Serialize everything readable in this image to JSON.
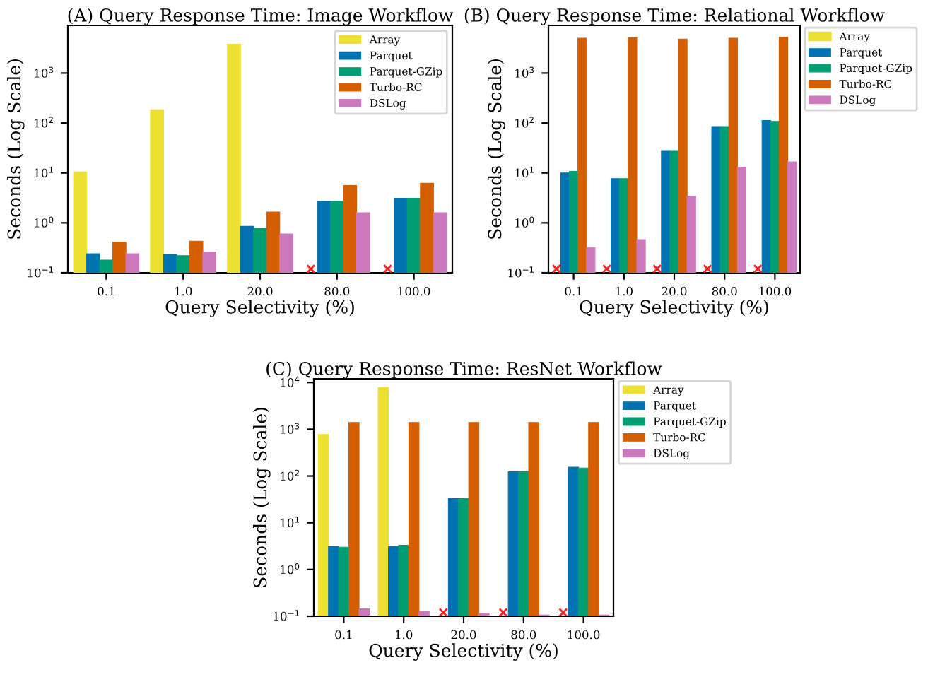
{
  "chart_data": [
    {
      "type": "bar",
      "title": "(A) Query Response Time: Image Workflow",
      "xlabel": "Query Selectivity (%)",
      "ylabel": "Seconds (Log Scale)",
      "categories": [
        "0.1",
        "1.0",
        "20.0",
        "80.0",
        "100.0"
      ],
      "log": true,
      "ylim": [
        0.1,
        9000
      ],
      "yticks": [
        {
          "value": 0.1,
          "label": "10$^{−1}$"
        },
        {
          "value": 1,
          "label": "10$^{0}$"
        },
        {
          "value": 10,
          "label": "10$^{1}$"
        },
        {
          "value": 100,
          "label": "10$^{2}$"
        },
        {
          "value": 1000,
          "label": "10$^{3}$"
        }
      ],
      "grid": false,
      "legend": "top right",
      "series": [
        {
          "name": "Array",
          "color": "#ece133",
          "values": [
            10.5,
            185,
            3800,
            null,
            null
          ]
        },
        {
          "name": "Parquet",
          "color": "#0173b2",
          "values": [
            0.24,
            0.23,
            0.85,
            2.7,
            3.1
          ]
        },
        {
          "name": "Parquet-GZip",
          "color": "#029e73",
          "values": [
            0.18,
            0.22,
            0.78,
            2.7,
            3.1
          ]
        },
        {
          "name": "Turbo-RC",
          "color": "#d55e00",
          "values": [
            0.41,
            0.43,
            1.65,
            5.6,
            6.2
          ]
        },
        {
          "name": "DSLog",
          "color": "#cc78bc",
          "values": [
            0.24,
            0.26,
            0.6,
            1.6,
            1.6
          ]
        },
        {
          "type": "scatter",
          "color": "#ff2020",
          "marker": "cross",
          "x": [
            "80.0",
            "100.0"
          ],
          "values": [
            0.12,
            0.12
          ]
        }
      ]
    },
    {
      "type": "bar",
      "title": "(B) Query Response Time: Relational Workflow",
      "xlabel": "Query Selectivity (%)",
      "ylabel": "Seconds (Log Scale)",
      "categories": [
        "0.1",
        "1.0",
        "20.0",
        "80.0",
        "100.0"
      ],
      "log": true,
      "ylim": [
        0.1,
        9000
      ],
      "yticks": [
        {
          "value": 0.1,
          "label": "10$^{−1}$"
        },
        {
          "value": 1,
          "label": "10$^{0}$"
        },
        {
          "value": 10,
          "label": "10$^{1}$"
        },
        {
          "value": 100,
          "label": "10$^{2}$"
        },
        {
          "value": 1000,
          "label": "10$^{3}$"
        }
      ],
      "grid": false,
      "legend": "right",
      "series": [
        {
          "name": "Array",
          "color": "#ece133",
          "values": [
            null,
            null,
            null,
            null,
            null
          ]
        },
        {
          "name": "Parquet",
          "color": "#0173b2",
          "values": [
            10,
            7.7,
            28,
            85,
            112
          ]
        },
        {
          "name": "Parquet-GZip",
          "color": "#029e73",
          "values": [
            10.7,
            7.7,
            28,
            85,
            108
          ]
        },
        {
          "name": "Turbo-RC",
          "color": "#d55e00",
          "values": [
            5000,
            5100,
            4800,
            5000,
            5200
          ]
        },
        {
          "name": "DSLog",
          "color": "#cc78bc",
          "values": [
            0.32,
            0.46,
            3.4,
            13,
            16.6
          ]
        },
        {
          "type": "scatter",
          "color": "#ff2020",
          "marker": "cross",
          "x": [
            "0.1",
            "1.0",
            "20.0",
            "80.0",
            "100.0"
          ],
          "values": [
            0.12,
            0.12,
            0.12,
            0.12,
            0.12
          ]
        }
      ]
    },
    {
      "type": "bar",
      "title": "(C) Query Response Time: ResNet Workflow",
      "xlabel": "Query Selectivity (%)",
      "ylabel": "Seconds (Log Scale)",
      "categories": [
        "0.1",
        "1.0",
        "20.0",
        "80.0",
        "100.0"
      ],
      "log": true,
      "ylim": [
        0.1,
        12000
      ],
      "yticks": [
        {
          "value": 0.1,
          "label": "10$^{−1}$"
        },
        {
          "value": 1,
          "label": "10$^{0}$"
        },
        {
          "value": 10,
          "label": "10$^{1}$"
        },
        {
          "value": 100,
          "label": "10$^{2}$"
        },
        {
          "value": 1000,
          "label": "10$^{3}$"
        },
        {
          "value": 10000,
          "label": "10$^{4}$"
        }
      ],
      "grid": false,
      "legend": "right",
      "series": [
        {
          "name": "Array",
          "color": "#ece133",
          "values": [
            770,
            7800,
            null,
            null,
            null
          ]
        },
        {
          "name": "Parquet",
          "color": "#0173b2",
          "values": [
            3.1,
            3.1,
            33,
            123,
            155
          ]
        },
        {
          "name": "Parquet-GZip",
          "color": "#029e73",
          "values": [
            3.0,
            3.3,
            33,
            123,
            148
          ]
        },
        {
          "name": "Turbo-RC",
          "color": "#d55e00",
          "values": [
            1400,
            1400,
            1400,
            1400,
            1400
          ]
        },
        {
          "name": "DSLog",
          "color": "#cc78bc",
          "values": [
            0.144,
            0.127,
            0.115,
            0.106,
            0.106
          ]
        },
        {
          "type": "scatter",
          "color": "#ff2020",
          "marker": "cross",
          "x": [
            "20.0",
            "80.0",
            "100.0"
          ],
          "values": [
            0.12,
            0.12,
            0.12
          ]
        }
      ]
    }
  ]
}
